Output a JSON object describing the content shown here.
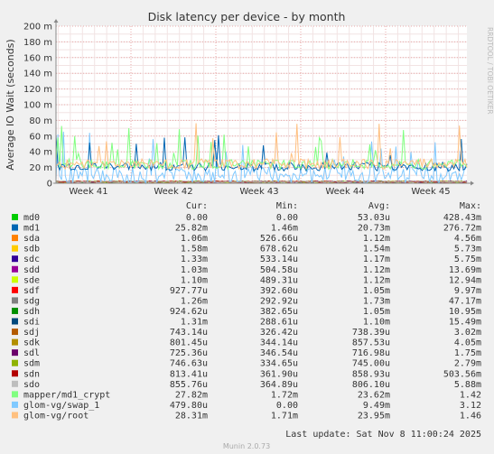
{
  "chart_data": {
    "type": "line",
    "title": "Disk latency per device - by month",
    "ylabel": "Average IO Wait (seconds)",
    "ylim": [
      0,
      0.2
    ],
    "yticks": [
      {
        "value": 0,
        "label": "0"
      },
      {
        "value": 0.02,
        "label": "20 m"
      },
      {
        "value": 0.04,
        "label": "40 m"
      },
      {
        "value": 0.06,
        "label": "60 m"
      },
      {
        "value": 0.08,
        "label": "80 m"
      },
      {
        "value": 0.1,
        "label": "100 m"
      },
      {
        "value": 0.12,
        "label": "120 m"
      },
      {
        "value": 0.14,
        "label": "140 m"
      },
      {
        "value": 0.16,
        "label": "160 m"
      },
      {
        "value": 0.18,
        "label": "180 m"
      },
      {
        "value": 0.2,
        "label": "200 m"
      }
    ],
    "xticks": [
      "Week 41",
      "Week 42",
      "Week 43",
      "Week 44",
      "Week 45"
    ],
    "grid": true,
    "legend_headers": {
      "cur": "Cur:",
      "min": "Min:",
      "avg": "Avg:",
      "max": "Max:"
    },
    "series": [
      {
        "name": "md0",
        "color": "#00cc00",
        "cur": "0.00",
        "min": "0.00",
        "avg": "53.03u",
        "max": "428.43m"
      },
      {
        "name": "md1",
        "color": "#0066b3",
        "cur": "25.82m",
        "min": "1.46m",
        "avg": "20.73m",
        "max": "276.72m"
      },
      {
        "name": "sda",
        "color": "#ff8000",
        "cur": "1.06m",
        "min": "526.66u",
        "avg": "1.12m",
        "max": "4.56m"
      },
      {
        "name": "sdb",
        "color": "#ffcc00",
        "cur": "1.58m",
        "min": "678.62u",
        "avg": "1.54m",
        "max": "5.73m"
      },
      {
        "name": "sdc",
        "color": "#330099",
        "cur": "1.33m",
        "min": "533.14u",
        "avg": "1.17m",
        "max": "5.75m"
      },
      {
        "name": "sdd",
        "color": "#990099",
        "cur": "1.03m",
        "min": "504.58u",
        "avg": "1.12m",
        "max": "13.69m"
      },
      {
        "name": "sde",
        "color": "#ccff00",
        "cur": "1.10m",
        "min": "489.31u",
        "avg": "1.12m",
        "max": "12.94m"
      },
      {
        "name": "sdf",
        "color": "#ff0000",
        "cur": "927.77u",
        "min": "392.60u",
        "avg": "1.05m",
        "max": "9.97m"
      },
      {
        "name": "sdg",
        "color": "#808080",
        "cur": "1.26m",
        "min": "292.92u",
        "avg": "1.73m",
        "max": "47.17m"
      },
      {
        "name": "sdh",
        "color": "#008f00",
        "cur": "924.62u",
        "min": "382.65u",
        "avg": "1.05m",
        "max": "10.95m"
      },
      {
        "name": "sdi",
        "color": "#00487d",
        "cur": "1.31m",
        "min": "288.61u",
        "avg": "1.10m",
        "max": "15.49m"
      },
      {
        "name": "sdj",
        "color": "#b35a00",
        "cur": "743.14u",
        "min": "326.42u",
        "avg": "738.39u",
        "max": "3.02m"
      },
      {
        "name": "sdk",
        "color": "#b38f00",
        "cur": "801.45u",
        "min": "344.14u",
        "avg": "857.53u",
        "max": "4.05m"
      },
      {
        "name": "sdl",
        "color": "#6b006b",
        "cur": "725.36u",
        "min": "346.54u",
        "avg": "716.98u",
        "max": "1.75m"
      },
      {
        "name": "sdm",
        "color": "#8fb300",
        "cur": "746.63u",
        "min": "334.65u",
        "avg": "745.00u",
        "max": "2.79m"
      },
      {
        "name": "sdn",
        "color": "#b30000",
        "cur": "813.41u",
        "min": "361.90u",
        "avg": "858.93u",
        "max": "503.56m"
      },
      {
        "name": "sdo",
        "color": "#bebebe",
        "cur": "855.76u",
        "min": "364.89u",
        "avg": "806.10u",
        "max": "5.88m"
      },
      {
        "name": "mapper/md1_crypt",
        "color": "#80ff80",
        "cur": "27.82m",
        "min": "1.72m",
        "avg": "23.62m",
        "max": "1.42"
      },
      {
        "name": "glom-vg/swap_1",
        "color": "#80c9ff",
        "cur": "479.80u",
        "min": "0.00",
        "avg": "9.49m",
        "max": "3.12"
      },
      {
        "name": "glom-vg/root",
        "color": "#ffc080",
        "cur": "28.31m",
        "min": "1.71m",
        "avg": "23.95m",
        "max": "1.46"
      }
    ]
  },
  "last_update": "Last update: Sat Nov  8 11:00:24 2025",
  "side_label": "RRDTOOL / TOBI OETIKER",
  "footer": "Munin 2.0.73"
}
